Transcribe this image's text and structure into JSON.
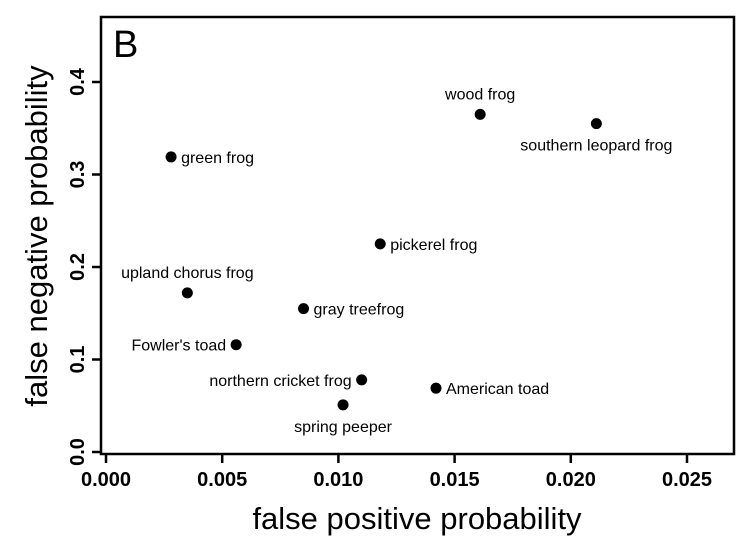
{
  "chart_data": {
    "type": "scatter",
    "panel_label": "B",
    "xlabel": "false positive probability",
    "ylabel": "false negative probability",
    "xlim": [
      0.0,
      0.026
    ],
    "ylim": [
      0.0,
      0.45
    ],
    "xticks": [
      {
        "value": 0.0,
        "label": "0.000"
      },
      {
        "value": 0.005,
        "label": "0.005"
      },
      {
        "value": 0.01,
        "label": "0.010"
      },
      {
        "value": 0.015,
        "label": "0.015"
      },
      {
        "value": 0.02,
        "label": "0.020"
      },
      {
        "value": 0.025,
        "label": "0.025"
      }
    ],
    "yticks": [
      {
        "value": 0.0,
        "label": "0.0"
      },
      {
        "value": 0.1,
        "label": "0.1"
      },
      {
        "value": 0.2,
        "label": "0.2"
      },
      {
        "value": 0.3,
        "label": "0.3"
      },
      {
        "value": 0.4,
        "label": "0.4"
      }
    ],
    "grid": false,
    "legend": "none",
    "points": [
      {
        "name": "wood frog",
        "x": 0.0161,
        "y": 0.365,
        "label_side": "above"
      },
      {
        "name": "southern leopard frog",
        "x": 0.0211,
        "y": 0.355,
        "label_side": "below"
      },
      {
        "name": "green frog",
        "x": 0.0028,
        "y": 0.319,
        "label_side": "right"
      },
      {
        "name": "pickerel frog",
        "x": 0.0118,
        "y": 0.225,
        "label_side": "right"
      },
      {
        "name": "upland chorus frog",
        "x": 0.0035,
        "y": 0.172,
        "label_side": "above"
      },
      {
        "name": "gray treefrog",
        "x": 0.0085,
        "y": 0.155,
        "label_side": "right"
      },
      {
        "name": "Fowler's toad",
        "x": 0.0056,
        "y": 0.116,
        "label_side": "left"
      },
      {
        "name": "northern cricket frog",
        "x": 0.011,
        "y": 0.078,
        "label_side": "left"
      },
      {
        "name": "American toad",
        "x": 0.0142,
        "y": 0.069,
        "label_side": "right"
      },
      {
        "name": "spring peeper",
        "x": 0.0102,
        "y": 0.051,
        "label_side": "below"
      }
    ]
  }
}
